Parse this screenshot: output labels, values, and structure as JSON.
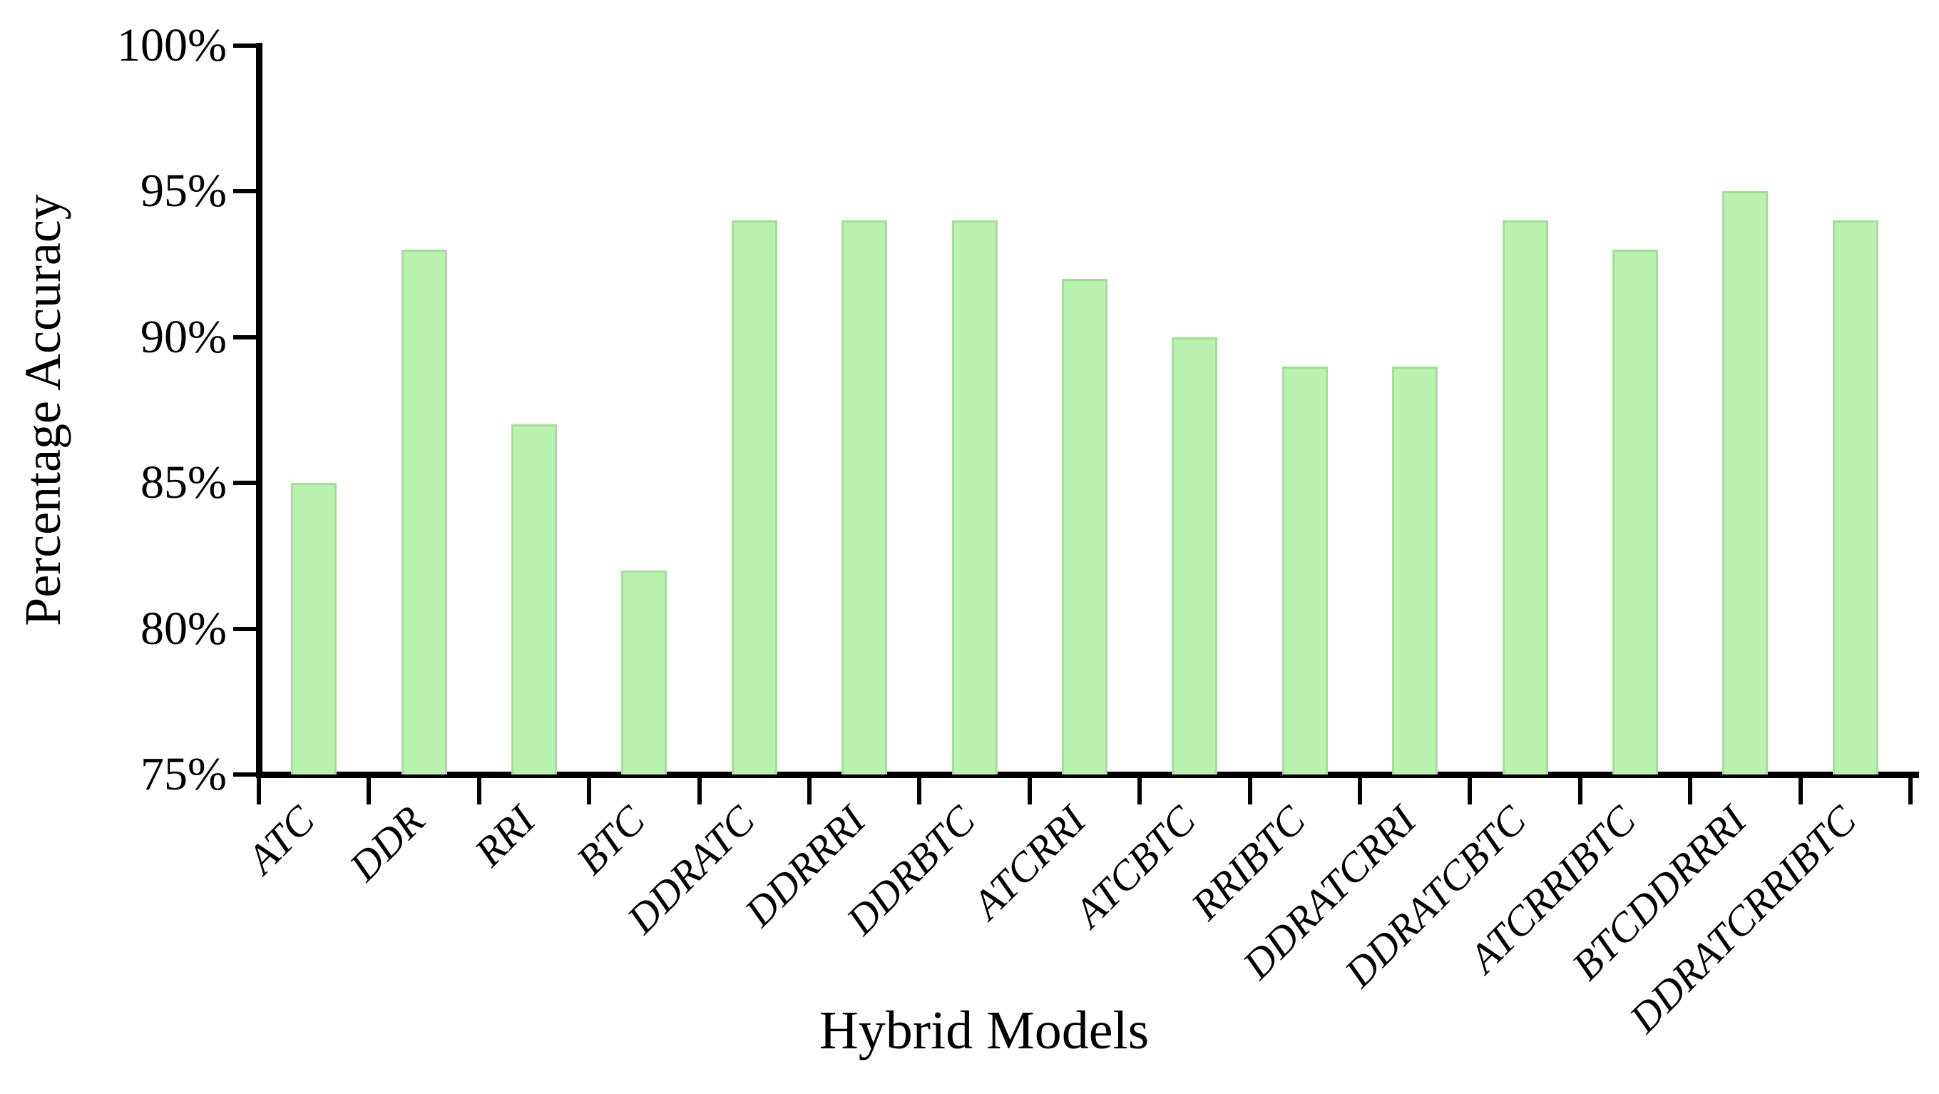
{
  "figure": {
    "background": "#ffffff",
    "axis_color": "#000000",
    "bar_fill": "#b8f2ae",
    "bar_border": "#a5dd9a"
  },
  "chart_data": {
    "type": "bar",
    "title": "",
    "xlabel": "Hybrid Models",
    "ylabel": "Percentage Accuracy",
    "categories": [
      "ATC",
      "DDR",
      "RRI",
      "BTC",
      "DDRATC",
      "DDRRRI",
      "DDRBTC",
      "ATCRRI",
      "ATCBTC",
      "RRIBTC",
      "DDRATCRRI",
      "DDRATCBTC",
      "ATCRRIBTC",
      "BTCDDRRRI",
      "DDRATCRRIBTC"
    ],
    "values": [
      85,
      93,
      87,
      82,
      94,
      94,
      94,
      92,
      90,
      89,
      89,
      94,
      93,
      95,
      94
    ],
    "value_unit": "%",
    "ylim": [
      75,
      100
    ],
    "ytick_values": [
      100,
      95,
      90,
      85,
      80,
      75
    ],
    "ytick_labels": [
      "100%",
      "95%",
      "90%",
      "85%",
      "80%",
      "75%"
    ],
    "grid": "off",
    "legend": "none",
    "bar_orientation": "vertical",
    "xtick_label_rotation_deg": -45
  }
}
